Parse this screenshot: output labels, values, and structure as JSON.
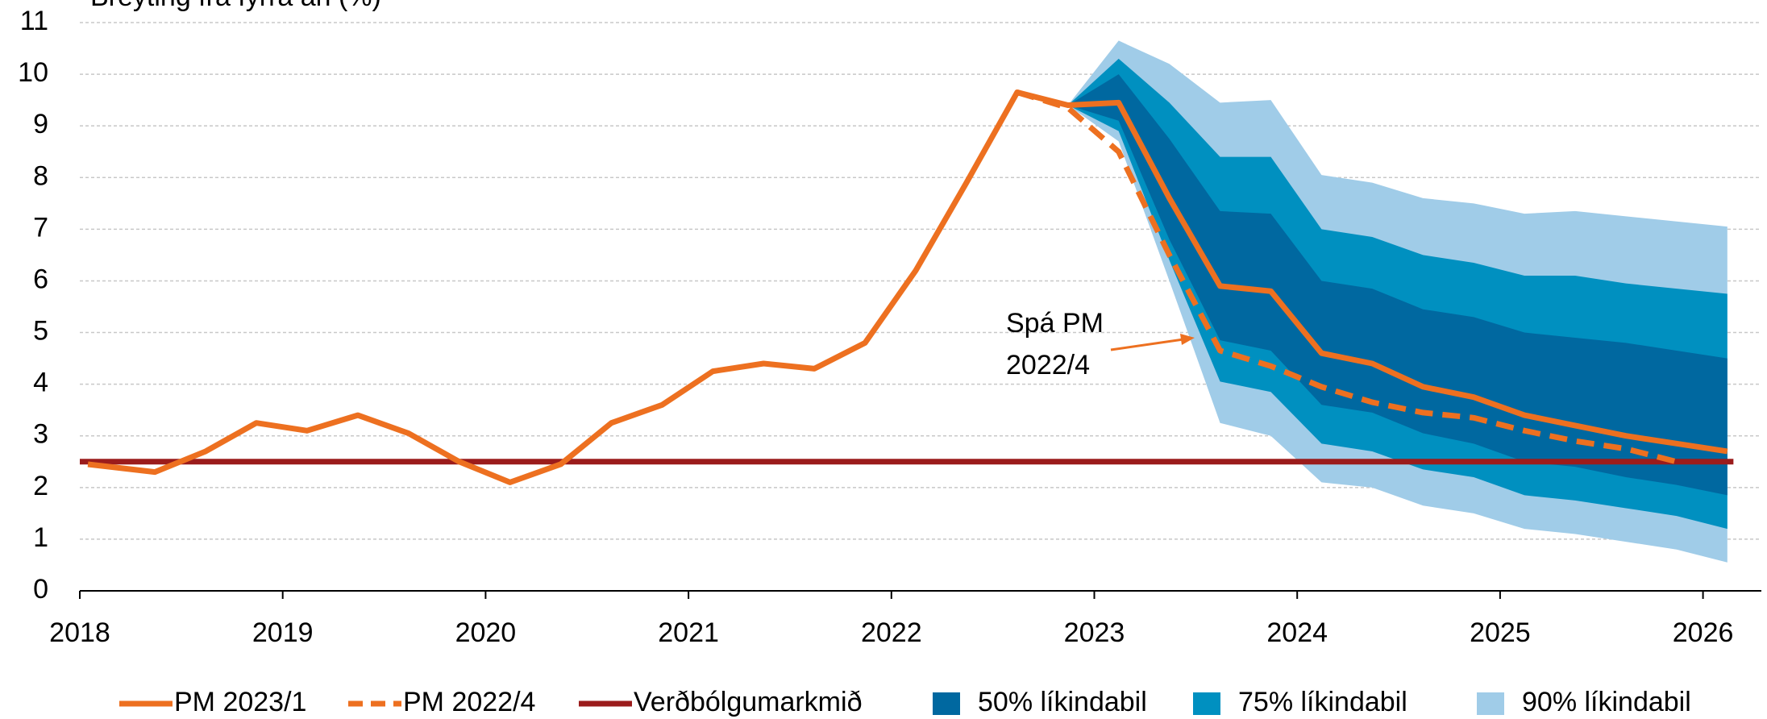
{
  "chart_data": {
    "type": "line",
    "y_label": "Breyting frá fyrra ári (%)",
    "xlim": [
      2018,
      2026.15
    ],
    "ylim": [
      0,
      11
    ],
    "xticks": [
      2018,
      2019,
      2020,
      2021,
      2022,
      2023,
      2024,
      2025,
      2026
    ],
    "yticks": [
      0,
      1,
      2,
      3,
      4,
      5,
      6,
      7,
      8,
      9,
      10,
      11
    ],
    "grid": true,
    "legend": "bottom",
    "annotation": {
      "text": [
        "Spá PM",
        "2022/4"
      ],
      "color": "#ED7020"
    },
    "series": [
      {
        "name": "90% líkindabil",
        "kind": "band",
        "color": "#A0CCE8",
        "x": [
          2022.87,
          2023.12,
          2023.37,
          2023.62,
          2023.87,
          2024.12,
          2024.37,
          2024.62,
          2024.87,
          2025.12,
          2025.37,
          2025.62,
          2025.87,
          2026.12
        ],
        "upper": [
          9.4,
          10.65,
          10.2,
          9.45,
          9.5,
          8.05,
          7.9,
          7.6,
          7.5,
          7.3,
          7.35,
          7.25,
          7.15,
          7.05
        ],
        "lower": [
          9.4,
          8.7,
          6.0,
          3.25,
          3.0,
          2.1,
          2.0,
          1.65,
          1.5,
          1.2,
          1.1,
          0.95,
          0.8,
          0.55
        ]
      },
      {
        "name": "75% líkindabil",
        "kind": "band",
        "color": "#0090C0",
        "x": [
          2022.87,
          2023.12,
          2023.37,
          2023.62,
          2023.87,
          2024.12,
          2024.37,
          2024.62,
          2024.87,
          2025.12,
          2025.37,
          2025.62,
          2025.87,
          2026.12
        ],
        "upper": [
          9.4,
          10.3,
          9.45,
          8.4,
          8.4,
          7.0,
          6.85,
          6.5,
          6.35,
          6.1,
          6.1,
          5.95,
          5.85,
          5.75
        ],
        "lower": [
          9.4,
          8.9,
          6.4,
          4.05,
          3.85,
          2.85,
          2.7,
          2.35,
          2.2,
          1.85,
          1.75,
          1.6,
          1.45,
          1.2
        ]
      },
      {
        "name": "50% líkindabil",
        "kind": "band",
        "color": "#0068A0",
        "x": [
          2022.87,
          2023.12,
          2023.37,
          2023.62,
          2023.87,
          2024.12,
          2024.37,
          2024.62,
          2024.87,
          2025.12,
          2025.37,
          2025.62,
          2025.87,
          2026.12
        ],
        "upper": [
          9.4,
          10.0,
          8.75,
          7.35,
          7.3,
          6.0,
          5.85,
          5.45,
          5.3,
          5.0,
          4.9,
          4.8,
          4.65,
          4.5
        ],
        "lower": [
          9.4,
          9.1,
          6.8,
          4.85,
          4.65,
          3.6,
          3.45,
          3.05,
          2.85,
          2.5,
          2.4,
          2.2,
          2.05,
          1.85
        ]
      },
      {
        "name": "Verðbólgumarkmið",
        "kind": "solid",
        "color": "#9B1C1C",
        "x": [
          2018,
          2026.15
        ],
        "values": [
          2.5,
          2.5
        ]
      },
      {
        "name": "PM 2022/4",
        "kind": "dashed",
        "color": "#ED7020",
        "x": [
          2022.62,
          2022.87,
          2023.12,
          2023.37,
          2023.62,
          2023.87,
          2024.12,
          2024.37,
          2024.62,
          2024.87,
          2025.12,
          2025.37,
          2025.62,
          2025.87
        ],
        "values": [
          9.65,
          9.35,
          8.5,
          6.5,
          4.65,
          4.35,
          3.95,
          3.65,
          3.45,
          3.35,
          3.1,
          2.9,
          2.75,
          2.5
        ]
      },
      {
        "name": "PM 2023/1",
        "kind": "solid",
        "color": "#ED7020",
        "x": [
          2018.04,
          2018.37,
          2018.62,
          2018.87,
          2019.12,
          2019.37,
          2019.62,
          2019.87,
          2020.12,
          2020.37,
          2020.62,
          2020.87,
          2021.12,
          2021.37,
          2021.62,
          2021.87,
          2022.12,
          2022.37,
          2022.62,
          2022.87,
          2023.12,
          2023.37,
          2023.62,
          2023.87,
          2024.12,
          2024.37,
          2024.62,
          2024.87,
          2025.12,
          2025.37,
          2025.62,
          2025.87,
          2026.12
        ],
        "values": [
          2.45,
          2.3,
          2.7,
          3.25,
          3.1,
          3.4,
          3.05,
          2.5,
          2.1,
          2.45,
          3.25,
          3.6,
          4.25,
          4.4,
          4.3,
          4.8,
          6.2,
          7.9,
          9.65,
          9.4,
          9.45,
          7.6,
          5.9,
          5.8,
          4.6,
          4.4,
          3.95,
          3.75,
          3.4,
          3.2,
          3.0,
          2.85,
          2.7
        ]
      }
    ]
  }
}
